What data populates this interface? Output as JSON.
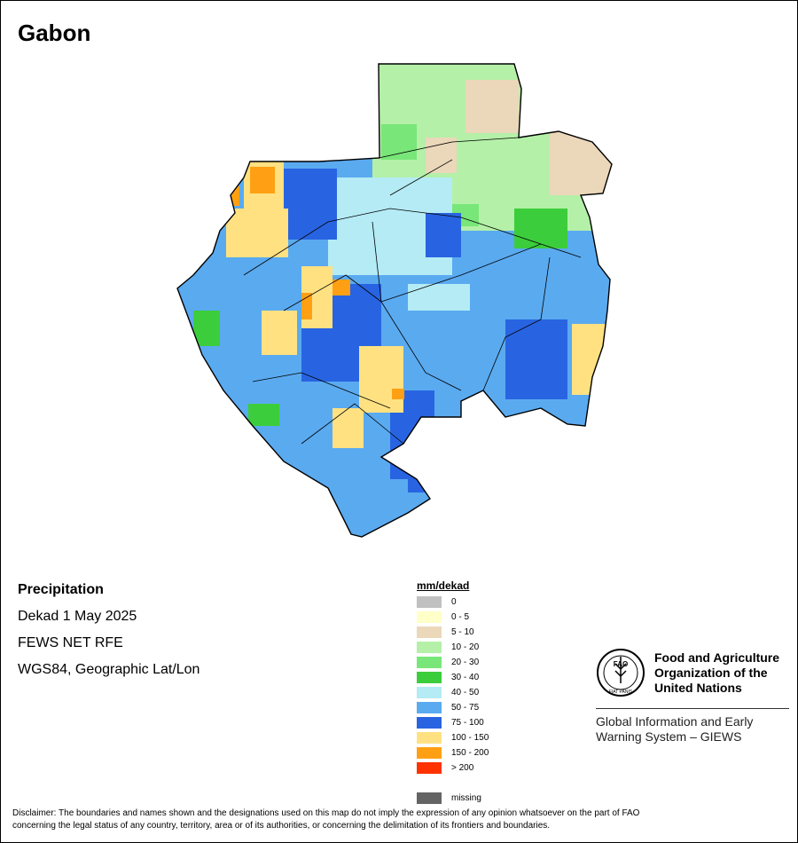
{
  "title": "Gabon",
  "meta": {
    "variable": "Precipitation",
    "period": "Dekad 1 May 2025",
    "source": "FEWS NET RFE",
    "projection": "WGS84, Geographic Lat/Lon"
  },
  "legend": {
    "unit": "mm/dekad",
    "items": [
      {
        "label": "0",
        "color": "#c0c0c0"
      },
      {
        "label": "0 - 5",
        "color": "#ffffc8"
      },
      {
        "label": "5 - 10",
        "color": "#ebd7b9"
      },
      {
        "label": "10 - 20",
        "color": "#b4f0a8"
      },
      {
        "label": "20 - 30",
        "color": "#78e678"
      },
      {
        "label": "30 - 40",
        "color": "#3ccd3c"
      },
      {
        "label": "40 - 50",
        "color": "#b4ebf5"
      },
      {
        "label": "50 - 75",
        "color": "#5aaaf0"
      },
      {
        "label": "75 - 100",
        "color": "#2864e1"
      },
      {
        "label": "100 - 150",
        "color": "#ffe182"
      },
      {
        "label": "150 - 200",
        "color": "#ffa014"
      },
      {
        "label": "> 200",
        "color": "#ff3200"
      }
    ],
    "missing": {
      "label": "missing",
      "color": "#646464"
    }
  },
  "organization": {
    "logo_text": "FAO",
    "logo_motto": "FIAT PANIS",
    "name_line1": "Food and Agriculture",
    "name_line2": "Organization of the",
    "name_line3": "United Nations",
    "system_line1": "Global Information and Early",
    "system_line2": "Warning System – GIEWS"
  },
  "disclaimer": {
    "line1": "Disclaimer: The boundaries and names shown and the designations used on this map do not imply the expression of any opinion whatsoever on the part of FAO",
    "line2": "concerning the legal status of any country, territory, area or of its authorities, or concerning the delimitation of its frontiers and boundaries."
  }
}
